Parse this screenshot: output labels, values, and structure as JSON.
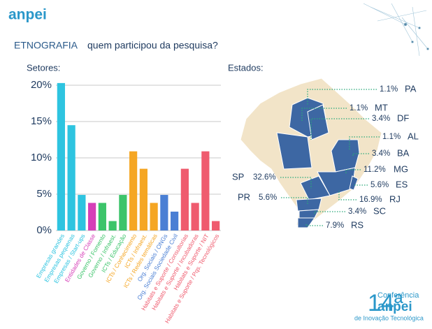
{
  "header": {
    "logo": "anpei",
    "title": "ETNOGRAFIA",
    "subtitle": "quem participou da pesquisa?"
  },
  "chart_data": {
    "type": "bar",
    "title": "Setores:",
    "categories": [
      "Empresas grandes",
      "Empresas pequenas",
      "Empresas / Start-ups",
      "Entidades de Classe",
      "Governo / Fomento",
      "Governo / Infraest.",
      "ICTs / Educação",
      "ICTs / Conhecimento",
      "ICTs / Infraest.",
      "ICTs / Redes temáticas",
      "Org. Sociais / ONGs",
      "Org. Sociais Sociedade Civil",
      "Habitats e Suporte / Consultorias",
      "Habitats e Suporte / Incubadoras",
      "Habitats e Suporte / NIT",
      "Habitats e Suporte / Pqs. Tecnológicos"
    ],
    "values": [
      20.3,
      14.5,
      4.9,
      3.8,
      3.8,
      1.3,
      4.9,
      10.9,
      8.5,
      3.8,
      4.9,
      2.6,
      8.5,
      3.8,
      10.9,
      1.3
    ],
    "colors": [
      "#2ec4e0",
      "#2ec4e0",
      "#2ec4e0",
      "#d63fb8",
      "#3cc46a",
      "#3cc46a",
      "#3cc46a",
      "#f5a623",
      "#f5a623",
      "#f5a623",
      "#4a7fd4",
      "#4a7fd4",
      "#ef5b6e",
      "#ef5b6e",
      "#ef5b6e",
      "#ef5b6e"
    ],
    "ylim": [
      0,
      21
    ],
    "yticks": [
      {
        "value": 0,
        "label": "0%"
      },
      {
        "value": 5,
        "label": "5%"
      },
      {
        "value": 10,
        "label": "10%"
      },
      {
        "value": 15,
        "label": "15%"
      },
      {
        "value": 20,
        "label": "20%"
      }
    ],
    "grid": true
  },
  "map": {
    "title": "Estados:",
    "states": [
      {
        "name": "PA",
        "label": "1.1%"
      },
      {
        "name": "MT",
        "label": "1.1%"
      },
      {
        "name": "DF",
        "label": "3.4%"
      },
      {
        "name": "AL",
        "label": "1.1%"
      },
      {
        "name": "BA",
        "label": "3.4%"
      },
      {
        "name": "MG",
        "label": "11.2%"
      },
      {
        "name": "ES",
        "label": "5.6%"
      },
      {
        "name": "RJ",
        "label": "16.9%"
      },
      {
        "name": "SC",
        "label": "3.4%"
      },
      {
        "name": "RS",
        "label": "7.9%"
      },
      {
        "name": "SP",
        "label": "32.6%"
      },
      {
        "name": "PR",
        "label": "5.6%"
      }
    ]
  },
  "footer": {
    "number": "14ª",
    "line1": "Conferência",
    "brand": "anpei",
    "line2": "de Inovação Tecnológica"
  }
}
